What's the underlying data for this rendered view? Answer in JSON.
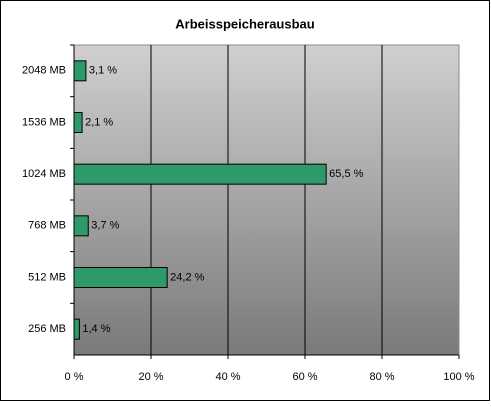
{
  "chart_data": {
    "type": "bar",
    "orientation": "horizontal",
    "title": "Arbeisspeicherausbau",
    "categories": [
      "2048 MB",
      "1536 MB",
      "1024 MB",
      "768 MB",
      "512 MB",
      "256 MB"
    ],
    "values": [
      3.1,
      2.1,
      65.5,
      3.7,
      24.2,
      1.4
    ],
    "value_labels": [
      "3,1 %",
      "2,1 %",
      "65,5 %",
      "3,7 %",
      "24,2 %",
      "1,4 %"
    ],
    "color": "#2e9a6a",
    "xlim": [
      0,
      100
    ],
    "xticks": [
      {
        "value": 0,
        "label": "0 %"
      },
      {
        "value": 20,
        "label": "20 %"
      },
      {
        "value": 40,
        "label": "40 %"
      },
      {
        "value": 60,
        "label": "60 %"
      },
      {
        "value": 80,
        "label": "80 %"
      },
      {
        "value": 100,
        "label": "100 %"
      }
    ],
    "grid": true
  }
}
